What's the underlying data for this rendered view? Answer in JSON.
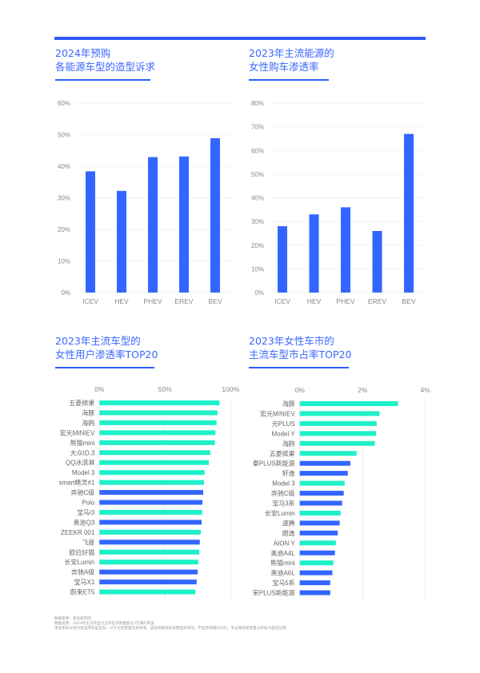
{
  "colors": {
    "blue": "#3366ff",
    "teal": "#1ef0c8",
    "grid": "#ececec",
    "tick": "#888888"
  },
  "titles": {
    "c1": [
      "2024年预购",
      "各能源车型的造型诉求"
    ],
    "c2": [
      "2023年主流能源的",
      "女性购车渗透率"
    ],
    "c3": [
      "2023年主流车型的",
      "女性用户渗透率TOP20"
    ],
    "c4": [
      "2023年女性车市的",
      "主流车型市占率TOP20"
    ]
  },
  "notes": [
    "数据来源：易车研究院",
    "数据说明：2023年主流车型为当年在华销量超过3万辆的车型",
    "渗透率的分母为某品牌车型自身，分子为某变量的具体值，该指标能较好说明自身情况，不宜简单横向对比；市占率指某变量占所处大盘的比例"
  ],
  "chart_data": [
    {
      "type": "bar",
      "title": "2024年预购各能源车型的造型诉求",
      "categories": [
        "ICEV",
        "HEV",
        "PHEV",
        "EREV",
        "BEV"
      ],
      "values": [
        38.4,
        32.2,
        42.9,
        43.1,
        48.9
      ],
      "ylim": [
        0,
        60
      ],
      "yticks": [
        0,
        10,
        20,
        30,
        40,
        50,
        60
      ],
      "unit": "%",
      "grid": true
    },
    {
      "type": "bar",
      "title": "2023年主流能源的女性购车渗透率",
      "categories": [
        "ICEV",
        "HEV",
        "PHEV",
        "EREV",
        "BEV"
      ],
      "values": [
        28,
        33,
        36,
        26,
        67
      ],
      "ylim": [
        0,
        80
      ],
      "yticks": [
        0,
        10,
        20,
        30,
        40,
        50,
        60,
        70,
        80
      ],
      "unit": "%",
      "grid": true
    },
    {
      "type": "bar",
      "orientation": "horizontal",
      "title": "2023年主流车型的女性用户渗透率TOP20",
      "xlim": [
        0,
        100
      ],
      "xticks": [
        0,
        50,
        100
      ],
      "unit": "%",
      "categories": [
        "五菱缤果",
        "海豚",
        "海鸥",
        "宏光MINIEV",
        "熊猫mini",
        "大众ID.3",
        "QQ冰淇淋",
        "Model 3",
        "smart精灵#1",
        "奔驰C级",
        "Polo",
        "宝马i3",
        "奥迪Q3",
        "ZEEKR 001",
        "飞度",
        "欧拉好猫",
        "长安Lumin",
        "奔驰A级",
        "宝马X1",
        "蔚来ET5"
      ],
      "values": [
        91.5,
        90,
        89.3,
        88.4,
        88,
        84.4,
        83.4,
        80.1,
        79.7,
        79.1,
        78.5,
        78.3,
        77.9,
        77.3,
        76.5,
        76.1,
        75.3,
        74.9,
        74.1,
        73.1
      ],
      "color_group": [
        "teal",
        "teal",
        "teal",
        "teal",
        "teal",
        "teal",
        "teal",
        "teal",
        "teal",
        "blue",
        "blue",
        "teal",
        "blue",
        "teal",
        "blue",
        "teal",
        "teal",
        "blue",
        "blue",
        "teal"
      ]
    },
    {
      "type": "bar",
      "orientation": "horizontal",
      "title": "2023年女性车市的主流车型市占率TOP20",
      "xlim": [
        0,
        4
      ],
      "xticks": [
        0,
        2,
        4
      ],
      "unit": "%",
      "categories": [
        "海豚",
        "宏光MINIEV",
        "元PLUS",
        "Model Y",
        "海鸥",
        "五菱缤果",
        "秦PLUS新能源",
        "轩逸",
        "Model 3",
        "奔驰C级",
        "宝马3系",
        "长安Lumin",
        "速腾",
        "朗逸",
        "AION Y",
        "奥迪A4L",
        "熊猫mini",
        "奥迪A6L",
        "宝马5系",
        "宋PLUS新能源"
      ],
      "values": [
        3.13,
        2.54,
        2.45,
        2.43,
        2.39,
        1.81,
        1.61,
        1.53,
        1.43,
        1.4,
        1.35,
        1.3,
        1.27,
        1.21,
        1.15,
        1.12,
        1.07,
        1.04,
        0.97,
        0.97
      ],
      "color_group": [
        "teal",
        "teal",
        "teal",
        "teal",
        "teal",
        "teal",
        "blue",
        "blue",
        "teal",
        "blue",
        "blue",
        "teal",
        "blue",
        "blue",
        "teal",
        "blue",
        "teal",
        "blue",
        "blue",
        "blue"
      ]
    }
  ]
}
